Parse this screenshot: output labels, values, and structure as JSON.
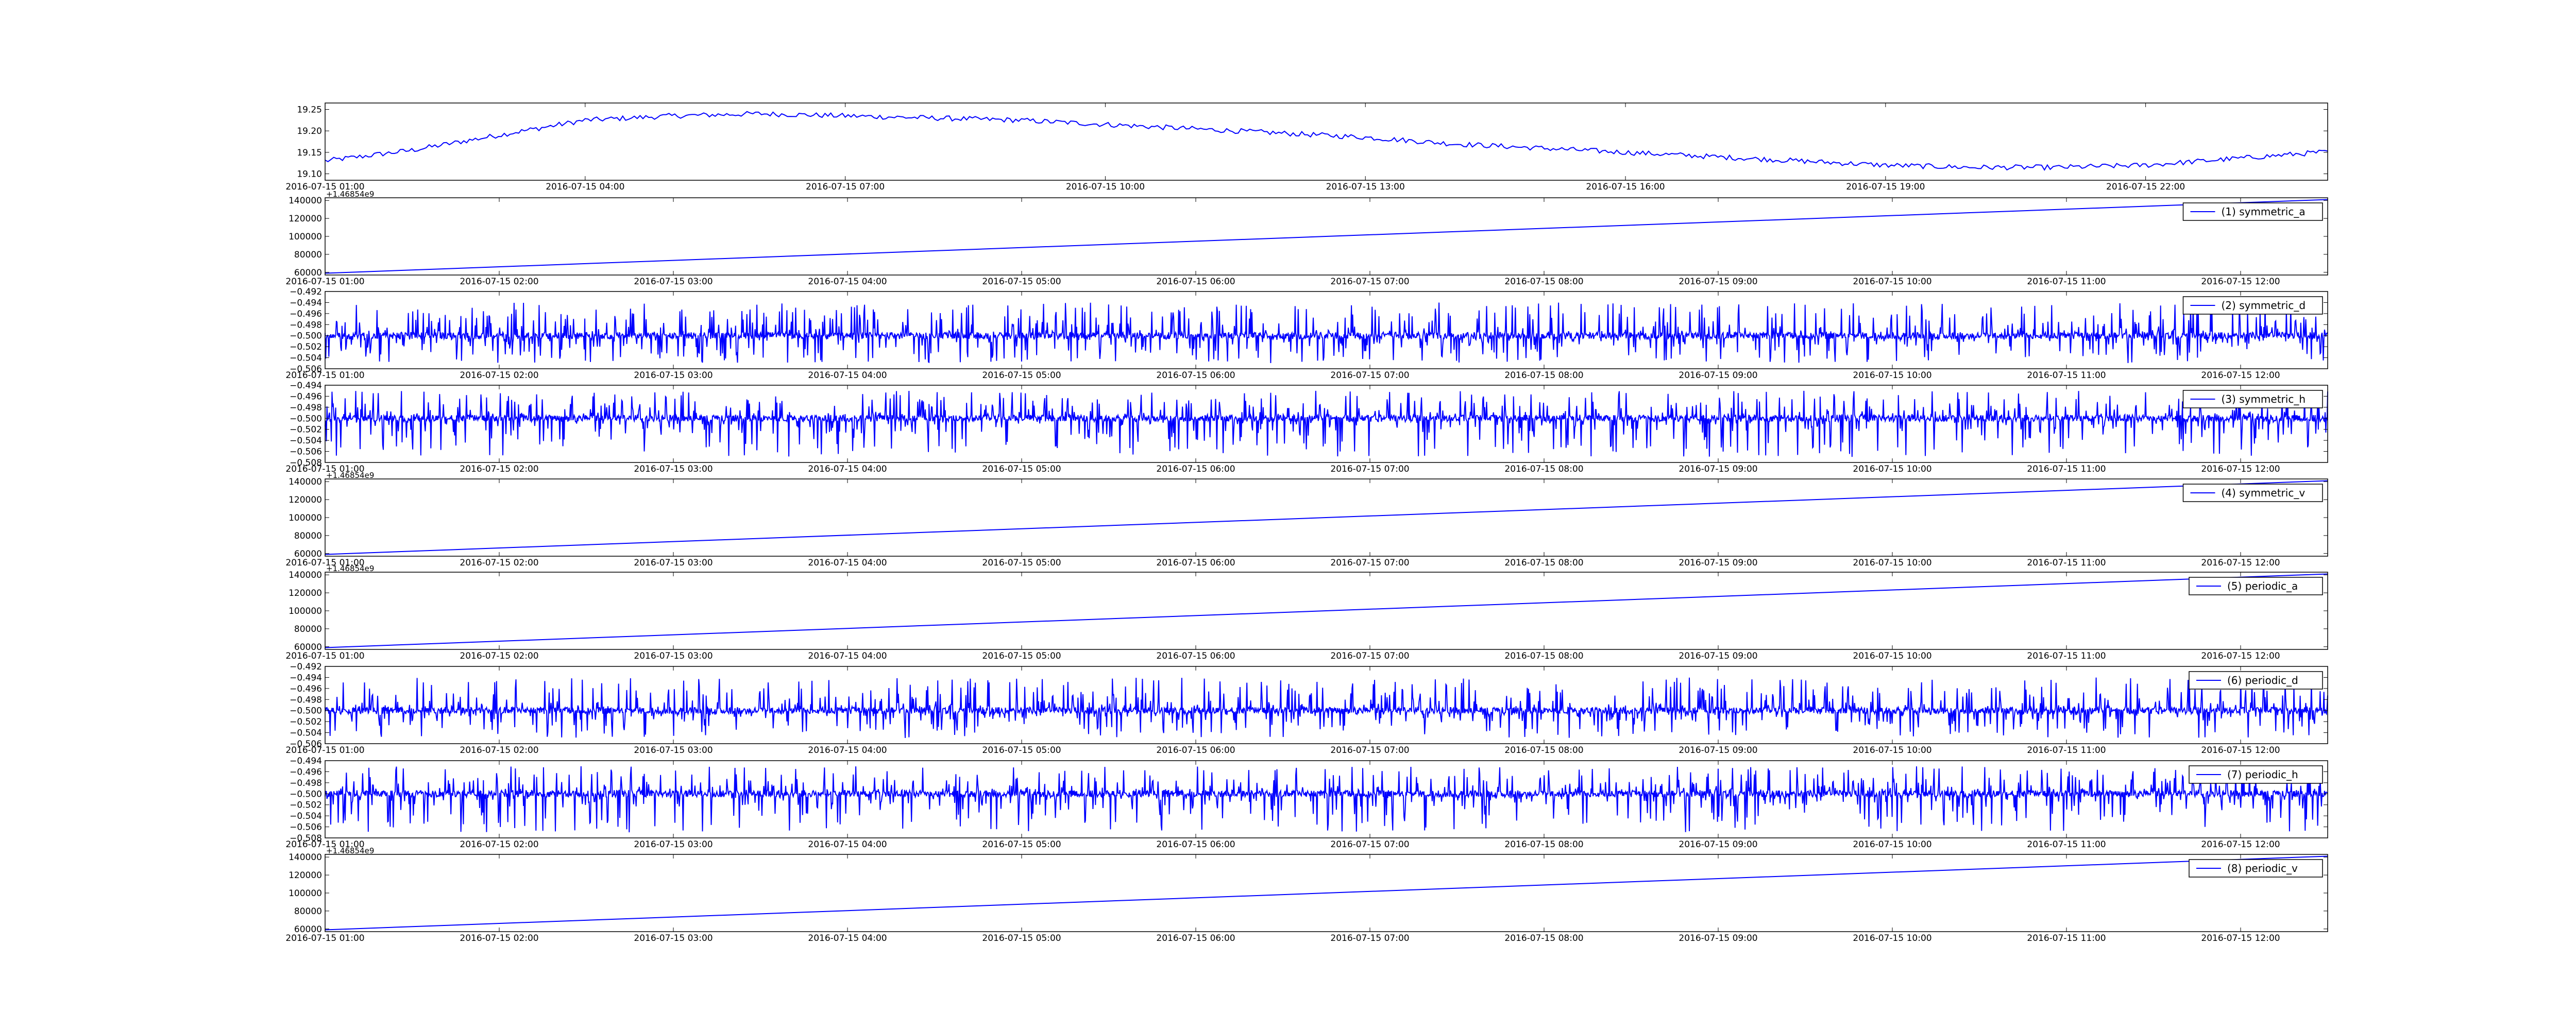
{
  "figure": {
    "line_color": "#0000ff",
    "axis_color": "#000000",
    "background": "#ffffff"
  },
  "chart_data": [
    {
      "type": "line",
      "title": "",
      "xlabel": "",
      "ylabel": "",
      "grid": false,
      "legend": "none",
      "x_ticks": [
        "2016-07-15 01:00",
        "2016-07-15 04:00",
        "2016-07-15 07:00",
        "2016-07-15 10:00",
        "2016-07-15 13:00",
        "2016-07-15 16:00",
        "2016-07-15 19:00",
        "2016-07-15 22:00"
      ],
      "xlim": [
        "2016-07-15 01:00",
        "2016-07-16 00:06"
      ],
      "y_ticks": [
        "19.10",
        "19.15",
        "19.20",
        "19.25"
      ],
      "ylim": [
        19.085,
        19.265
      ],
      "series": [
        {
          "name": "",
          "x": [
            "2016-07-15 01:00",
            "2016-07-15 02:00",
            "2016-07-15 03:00",
            "2016-07-15 04:00",
            "2016-07-15 05:00",
            "2016-07-15 06:00",
            "2016-07-15 07:00",
            "2016-07-15 08:00",
            "2016-07-15 09:00",
            "2016-07-15 10:00",
            "2016-07-15 11:00",
            "2016-07-15 12:00",
            "2016-07-15 13:00",
            "2016-07-15 14:00",
            "2016-07-15 15:00",
            "2016-07-15 16:00",
            "2016-07-15 17:00",
            "2016-07-15 18:00",
            "2016-07-15 19:00",
            "2016-07-15 20:00",
            "2016-07-15 21:00",
            "2016-07-15 22:00",
            "2016-07-15 23:00",
            "2016-07-16 00:00"
          ],
          "values": [
            19.13,
            19.155,
            19.19,
            19.225,
            19.235,
            19.24,
            19.235,
            19.23,
            19.225,
            19.215,
            19.205,
            19.195,
            19.185,
            19.17,
            19.16,
            19.15,
            19.14,
            19.13,
            19.12,
            19.115,
            19.115,
            19.12,
            19.135,
            19.15
          ]
        }
      ]
    },
    {
      "type": "line",
      "xlim": [
        "2016-07-15 01:00",
        "2016-07-15 12:30"
      ],
      "x_ticks": [
        "2016-07-15 01:00",
        "2016-07-15 02:00",
        "2016-07-15 03:00",
        "2016-07-15 04:00",
        "2016-07-15 05:00",
        "2016-07-15 06:00",
        "2016-07-15 07:00",
        "2016-07-15 08:00",
        "2016-07-15 09:00",
        "2016-07-15 10:00",
        "2016-07-15 11:00",
        "2016-07-15 12:00"
      ],
      "y_offset": "+1.46854e9",
      "y_ticks": [
        "60000",
        "80000",
        "100000",
        "120000",
        "140000"
      ],
      "ylim": [
        57000,
        143000
      ],
      "legend": "top-right",
      "series": [
        {
          "name": "(1) symmetric_a",
          "x": [
            "2016-07-15 01:00",
            "2016-07-15 12:30"
          ],
          "values": [
            59000,
            141000
          ]
        }
      ]
    },
    {
      "type": "line",
      "xlim": [
        "2016-07-15 01:00",
        "2016-07-15 12:30"
      ],
      "x_ticks": [
        "2016-07-15 01:00",
        "2016-07-15 02:00",
        "2016-07-15 03:00",
        "2016-07-15 04:00",
        "2016-07-15 05:00",
        "2016-07-15 06:00",
        "2016-07-15 07:00",
        "2016-07-15 08:00",
        "2016-07-15 09:00",
        "2016-07-15 10:00",
        "2016-07-15 11:00",
        "2016-07-15 12:00"
      ],
      "y_ticks": [
        "−0.506",
        "−0.504",
        "−0.502",
        "−0.500",
        "−0.498",
        "−0.496",
        "−0.494",
        "−0.492"
      ],
      "ylim": [
        -0.506,
        -0.492
      ],
      "legend": "top-right",
      "series": [
        {
          "name": "(2) symmetric_d",
          "baseline": -0.5,
          "noise_range": [
            -0.505,
            -0.494
          ]
        }
      ]
    },
    {
      "type": "line",
      "xlim": [
        "2016-07-15 01:00",
        "2016-07-15 12:30"
      ],
      "x_ticks": [
        "2016-07-15 01:00",
        "2016-07-15 02:00",
        "2016-07-15 03:00",
        "2016-07-15 04:00",
        "2016-07-15 05:00",
        "2016-07-15 06:00",
        "2016-07-15 07:00",
        "2016-07-15 08:00",
        "2016-07-15 09:00",
        "2016-07-15 10:00",
        "2016-07-15 11:00",
        "2016-07-15 12:00"
      ],
      "y_ticks": [
        "−0.508",
        "−0.506",
        "−0.504",
        "−0.502",
        "−0.500",
        "−0.498",
        "−0.496",
        "−0.494"
      ],
      "ylim": [
        -0.508,
        -0.494
      ],
      "legend": "top-right",
      "series": [
        {
          "name": "(3) symmetric_h",
          "baseline": -0.5,
          "noise_range": [
            -0.507,
            -0.495
          ]
        }
      ]
    },
    {
      "type": "line",
      "xlim": [
        "2016-07-15 01:00",
        "2016-07-15 12:30"
      ],
      "x_ticks": [
        "2016-07-15 01:00",
        "2016-07-15 02:00",
        "2016-07-15 03:00",
        "2016-07-15 04:00",
        "2016-07-15 05:00",
        "2016-07-15 06:00",
        "2016-07-15 07:00",
        "2016-07-15 08:00",
        "2016-07-15 09:00",
        "2016-07-15 10:00",
        "2016-07-15 11:00",
        "2016-07-15 12:00"
      ],
      "y_offset": "+1.46854e9",
      "y_ticks": [
        "60000",
        "80000",
        "100000",
        "120000",
        "140000"
      ],
      "ylim": [
        57000,
        143000
      ],
      "legend": "top-right",
      "series": [
        {
          "name": "(4) symmetric_v",
          "x": [
            "2016-07-15 01:00",
            "2016-07-15 12:30"
          ],
          "values": [
            59000,
            141000
          ]
        }
      ]
    },
    {
      "type": "line",
      "xlim": [
        "2016-07-15 01:00",
        "2016-07-15 12:30"
      ],
      "x_ticks": [
        "2016-07-15 01:00",
        "2016-07-15 02:00",
        "2016-07-15 03:00",
        "2016-07-15 04:00",
        "2016-07-15 05:00",
        "2016-07-15 06:00",
        "2016-07-15 07:00",
        "2016-07-15 08:00",
        "2016-07-15 09:00",
        "2016-07-15 10:00",
        "2016-07-15 11:00",
        "2016-07-15 12:00"
      ],
      "y_offset": "+1.46854e9",
      "y_ticks": [
        "60000",
        "80000",
        "100000",
        "120000",
        "140000"
      ],
      "ylim": [
        57000,
        143000
      ],
      "legend": "top-right",
      "series": [
        {
          "name": "(5) periodic_a",
          "x": [
            "2016-07-15 01:00",
            "2016-07-15 12:30"
          ],
          "values": [
            59000,
            141000
          ]
        }
      ]
    },
    {
      "type": "line",
      "xlim": [
        "2016-07-15 01:00",
        "2016-07-15 12:30"
      ],
      "x_ticks": [
        "2016-07-15 01:00",
        "2016-07-15 02:00",
        "2016-07-15 03:00",
        "2016-07-15 04:00",
        "2016-07-15 05:00",
        "2016-07-15 06:00",
        "2016-07-15 07:00",
        "2016-07-15 08:00",
        "2016-07-15 09:00",
        "2016-07-15 10:00",
        "2016-07-15 11:00",
        "2016-07-15 12:00"
      ],
      "y_ticks": [
        "−0.506",
        "−0.504",
        "−0.502",
        "−0.500",
        "−0.498",
        "−0.496",
        "−0.494",
        "−0.492"
      ],
      "ylim": [
        -0.506,
        -0.492
      ],
      "legend": "top-right",
      "series": [
        {
          "name": "(6) periodic_d",
          "baseline": -0.5,
          "noise_range": [
            -0.505,
            -0.494
          ]
        }
      ]
    },
    {
      "type": "line",
      "xlim": [
        "2016-07-15 01:00",
        "2016-07-15 12:30"
      ],
      "x_ticks": [
        "2016-07-15 01:00",
        "2016-07-15 02:00",
        "2016-07-15 03:00",
        "2016-07-15 04:00",
        "2016-07-15 05:00",
        "2016-07-15 06:00",
        "2016-07-15 07:00",
        "2016-07-15 08:00",
        "2016-07-15 09:00",
        "2016-07-15 10:00",
        "2016-07-15 11:00",
        "2016-07-15 12:00"
      ],
      "y_ticks": [
        "−0.508",
        "−0.506",
        "−0.504",
        "−0.502",
        "−0.500",
        "−0.498",
        "−0.496",
        "−0.494"
      ],
      "ylim": [
        -0.508,
        -0.494
      ],
      "legend": "top-right",
      "series": [
        {
          "name": "(7) periodic_h",
          "baseline": -0.5,
          "noise_range": [
            -0.507,
            -0.495
          ]
        }
      ]
    },
    {
      "type": "line",
      "xlim": [
        "2016-07-15 01:00",
        "2016-07-15 12:30"
      ],
      "x_ticks": [
        "2016-07-15 01:00",
        "2016-07-15 02:00",
        "2016-07-15 03:00",
        "2016-07-15 04:00",
        "2016-07-15 05:00",
        "2016-07-15 06:00",
        "2016-07-15 07:00",
        "2016-07-15 08:00",
        "2016-07-15 09:00",
        "2016-07-15 10:00",
        "2016-07-15 11:00",
        "2016-07-15 12:00"
      ],
      "y_offset": "+1.46854e9",
      "y_ticks": [
        "60000",
        "80000",
        "100000",
        "120000",
        "140000"
      ],
      "ylim": [
        57000,
        143000
      ],
      "legend": "top-right",
      "series": [
        {
          "name": "(8) periodic_v",
          "x": [
            "2016-07-15 01:00",
            "2016-07-15 12:30"
          ],
          "values": [
            59000,
            141000
          ]
        }
      ]
    }
  ]
}
